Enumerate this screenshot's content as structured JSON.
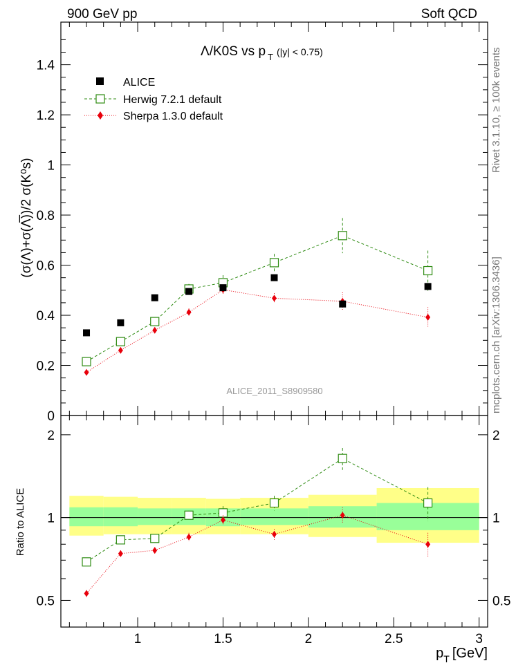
{
  "header": {
    "left": "900 GeV pp",
    "right": "Soft QCD"
  },
  "side_labels": {
    "rivet": "Rivet 3.1.10, ≥ 100k events",
    "mcplots": "mcplots.cern.ch [arXiv:1306.3436]"
  },
  "colors": {
    "data": "#000000",
    "herwig": "#2e8b12",
    "sherpa": "#e8000b",
    "band_outer": "#ffff88",
    "band_inner": "#99ff99",
    "watermark": "#999999"
  },
  "chart_data": {
    "type": "scatter",
    "title_main": "Λ/K0S vs p",
    "title_sub": "T",
    "title_tail": "(|y| < 0.75)",
    "ylabel": "(σ(Λ)+σ(Λ̅))/2 σ(K⁰s)",
    "ratio_ylabel": "Ratio to ALICE",
    "xlabel_main": "p",
    "xlabel_sub": "T",
    "xlabel_unit": "[GeV]",
    "watermark": "ALICE_2011_S8909580",
    "xlim": [
      0.55,
      3.05
    ],
    "ylim": [
      0,
      1.57
    ],
    "ratio_ylim": [
      0.4,
      2.35
    ],
    "x_ticks": [
      "1",
      "1.5",
      "2",
      "2.5",
      "3"
    ],
    "x_tick_values": [
      1,
      1.5,
      2,
      2.5,
      3
    ],
    "y_ticks": [
      "0",
      "0.2",
      "0.4",
      "0.6",
      "0.8",
      "1",
      "1.2",
      "1.4"
    ],
    "y_tick_values": [
      0,
      0.2,
      0.4,
      0.6,
      0.8,
      1.0,
      1.2,
      1.4
    ],
    "ratio_y_ticks": [
      "0.5",
      "1",
      "2"
    ],
    "ratio_y_tick_values": [
      0.5,
      1,
      2
    ],
    "legend": [
      {
        "key": "data",
        "label": "ALICE"
      },
      {
        "key": "herwig",
        "label": "Herwig 7.2.1 default"
      },
      {
        "key": "sherpa",
        "label": "Sherpa 1.3.0 default"
      }
    ],
    "data": {
      "name": "ALICE",
      "x": [
        0.7,
        0.9,
        1.1,
        1.3,
        1.5,
        1.8,
        2.2,
        2.7
      ],
      "y": [
        0.33,
        0.37,
        0.47,
        0.495,
        0.51,
        0.55,
        0.445,
        0.515
      ],
      "x_low": [
        0.6,
        0.8,
        1.0,
        1.2,
        1.4,
        1.6,
        2.0,
        2.4
      ],
      "x_high": [
        0.8,
        1.0,
        1.2,
        1.4,
        1.6,
        2.0,
        2.4,
        3.0
      ]
    },
    "band": {
      "inner_low": [
        0.93,
        0.93,
        0.94,
        0.94,
        0.93,
        0.94,
        0.92,
        0.9
      ],
      "inner_high": [
        1.09,
        1.09,
        1.08,
        1.08,
        1.08,
        1.08,
        1.1,
        1.13
      ],
      "outer_low": [
        0.86,
        0.87,
        0.87,
        0.87,
        0.87,
        0.87,
        0.85,
        0.81
      ],
      "outer_high": [
        1.2,
        1.19,
        1.18,
        1.18,
        1.17,
        1.18,
        1.21,
        1.28
      ]
    },
    "series": [
      {
        "key": "herwig",
        "name": "Herwig 7.2.1 default",
        "x": [
          0.7,
          0.9,
          1.1,
          1.3,
          1.5,
          1.8,
          2.2,
          2.7
        ],
        "y": [
          0.215,
          0.295,
          0.375,
          0.505,
          0.53,
          0.61,
          0.718,
          0.578
        ],
        "err": [
          0.01,
          0.01,
          0.01,
          0.02,
          0.03,
          0.035,
          0.07,
          0.08
        ],
        "ratio": [
          0.69,
          0.83,
          0.84,
          1.02,
          1.04,
          1.13,
          1.64,
          1.13
        ],
        "ratio_err": [
          0.02,
          0.02,
          0.02,
          0.04,
          0.06,
          0.07,
          0.15,
          0.16
        ]
      },
      {
        "key": "sherpa",
        "name": "Sherpa 1.3.0 default",
        "x": [
          0.7,
          0.9,
          1.1,
          1.3,
          1.5,
          1.8,
          2.2,
          2.7
        ],
        "y": [
          0.172,
          0.26,
          0.34,
          0.412,
          0.502,
          0.468,
          0.456,
          0.392
        ],
        "err": [
          0.008,
          0.01,
          0.01,
          0.015,
          0.02,
          0.02,
          0.035,
          0.04
        ],
        "ratio": [
          0.53,
          0.74,
          0.76,
          0.85,
          0.98,
          0.87,
          1.02,
          0.8
        ],
        "ratio_err": [
          0.015,
          0.02,
          0.02,
          0.03,
          0.04,
          0.04,
          0.07,
          0.08
        ]
      }
    ]
  }
}
